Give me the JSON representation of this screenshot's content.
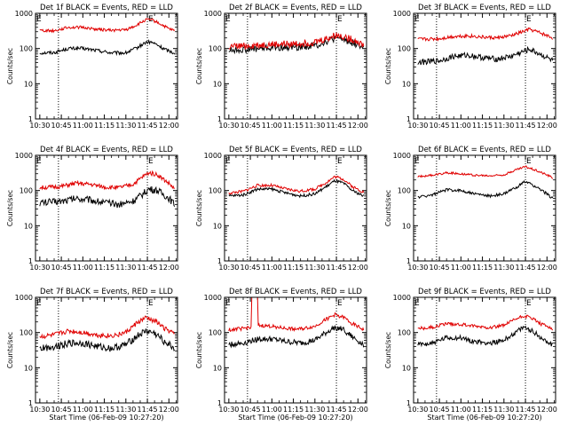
{
  "figure": {
    "background": "#ffffff",
    "colors": {
      "events": "#000000",
      "lld": "#e00000",
      "axis": "#000000"
    }
  },
  "chart_data": [
    {
      "type": "line",
      "title": "Det 1f BLACK = Events, RED = LLD",
      "xlabel": "",
      "ylabel": "Counts/sec",
      "yscale": "log",
      "ylim": [
        1,
        1000
      ],
      "x_ticks": [
        "10:30",
        "10:45",
        "11:00",
        "11:15",
        "11:30",
        "11:45",
        "12:00"
      ],
      "y_ticks": [
        "1",
        "10",
        "100",
        "1000"
      ],
      "markers": [
        {
          "time": "10:43",
          "label": ""
        },
        {
          "time": "11:45",
          "label": "E"
        }
      ],
      "corner_label": "E",
      "series": [
        {
          "name": "Events",
          "color": "#000000",
          "x": [
            "10:30",
            "10:40",
            "10:50",
            "11:00",
            "11:10",
            "11:20",
            "11:30",
            "11:37",
            "11:44",
            "11:48",
            "11:52",
            "11:56",
            "12:00",
            "12:04"
          ],
          "y": [
            75,
            77,
            100,
            100,
            88,
            75,
            75,
            100,
            150,
            150,
            125,
            100,
            85,
            75
          ],
          "noise": 0.05
        },
        {
          "name": "LLD",
          "color": "#e00000",
          "x": [
            "10:30",
            "10:40",
            "10:50",
            "11:00",
            "11:10",
            "11:20",
            "11:30",
            "11:37",
            "11:44",
            "11:48",
            "11:52",
            "11:56",
            "12:00",
            "12:04"
          ],
          "y": [
            330,
            320,
            400,
            400,
            350,
            330,
            340,
            450,
            650,
            650,
            550,
            450,
            360,
            320
          ],
          "noise": 0.04
        }
      ]
    },
    {
      "type": "line",
      "title": "Det 2f BLACK = Events, RED = LLD",
      "xlabel": "",
      "ylabel": "Counts/sec",
      "yscale": "log",
      "ylim": [
        1,
        1000
      ],
      "x_ticks": [
        "10:30",
        "10:45",
        "11:00",
        "11:15",
        "11:30",
        "11:45",
        "12:00"
      ],
      "y_ticks": [
        "1",
        "10",
        "100",
        "1000"
      ],
      "markers": [
        {
          "time": "10:43",
          "label": ""
        },
        {
          "time": "11:45",
          "label": "E"
        }
      ],
      "corner_label": "E",
      "series": [
        {
          "name": "Events",
          "color": "#000000",
          "x": [
            "10:30",
            "10:45",
            "11:00",
            "11:15",
            "11:30",
            "11:40",
            "11:45",
            "11:50",
            "12:00",
            "12:04"
          ],
          "y": [
            90,
            95,
            105,
            110,
            120,
            170,
            200,
            180,
            130,
            100
          ],
          "noise": 0.1
        },
        {
          "name": "LLD",
          "color": "#e00000",
          "x": [
            "10:30",
            "10:45",
            "11:00",
            "11:15",
            "11:30",
            "11:40",
            "11:45",
            "11:50",
            "12:00",
            "12:04"
          ],
          "y": [
            110,
            120,
            130,
            135,
            150,
            200,
            240,
            220,
            160,
            120
          ],
          "noise": 0.1
        }
      ]
    },
    {
      "type": "line",
      "title": "Det 3f BLACK = Events, RED = LLD",
      "xlabel": "",
      "ylabel": "Counts/sec",
      "yscale": "log",
      "ylim": [
        1,
        1000
      ],
      "x_ticks": [
        "10:30",
        "10:45",
        "11:00",
        "11:15",
        "11:30",
        "11:45",
        "12:00"
      ],
      "y_ticks": [
        "1",
        "10",
        "100",
        "1000"
      ],
      "markers": [
        {
          "time": "10:43",
          "label": ""
        },
        {
          "time": "11:45",
          "label": "E"
        }
      ],
      "corner_label": "E",
      "series": [
        {
          "name": "Events",
          "color": "#000000",
          "x": [
            "10:30",
            "10:45",
            "10:55",
            "11:05",
            "11:15",
            "11:25",
            "11:35",
            "11:43",
            "11:48",
            "11:55",
            "12:04"
          ],
          "y": [
            40,
            45,
            60,
            65,
            55,
            50,
            60,
            80,
            95,
            70,
            45
          ],
          "noise": 0.08
        },
        {
          "name": "LLD",
          "color": "#e00000",
          "x": [
            "10:30",
            "10:45",
            "10:55",
            "11:05",
            "11:15",
            "11:25",
            "11:35",
            "11:43",
            "11:48",
            "11:55",
            "12:04"
          ],
          "y": [
            180,
            190,
            220,
            230,
            210,
            200,
            230,
            300,
            350,
            280,
            200
          ],
          "noise": 0.05
        }
      ]
    },
    {
      "type": "line",
      "title": "Det 4f BLACK = Events, RED = LLD",
      "xlabel": "",
      "ylabel": "Counts/sec",
      "yscale": "log",
      "ylim": [
        1,
        1000
      ],
      "x_ticks": [
        "10:30",
        "10:45",
        "11:00",
        "11:15",
        "11:30",
        "11:45",
        "12:00"
      ],
      "y_ticks": [
        "1",
        "10",
        "100",
        "1000"
      ],
      "markers": [
        {
          "time": "10:43",
          "label": ""
        },
        {
          "time": "11:45",
          "label": "E"
        }
      ],
      "corner_label": "E",
      "series": [
        {
          "name": "Events",
          "color": "#000000",
          "x": [
            "10:30",
            "10:45",
            "10:55",
            "11:05",
            "11:15",
            "11:25",
            "11:35",
            "11:42",
            "11:46",
            "11:52",
            "12:00",
            "12:04"
          ],
          "y": [
            45,
            50,
            60,
            55,
            45,
            40,
            50,
            80,
            110,
            100,
            60,
            40
          ],
          "noise": 0.1
        },
        {
          "name": "LLD",
          "color": "#e00000",
          "x": [
            "10:30",
            "10:45",
            "10:55",
            "11:05",
            "11:15",
            "11:25",
            "11:35",
            "11:42",
            "11:46",
            "11:52",
            "12:00",
            "12:04"
          ],
          "y": [
            120,
            130,
            160,
            150,
            125,
            120,
            150,
            250,
            320,
            280,
            160,
            110
          ],
          "noise": 0.06
        }
      ]
    },
    {
      "type": "line",
      "title": "Det 5f BLACK = Events, RED = LLD",
      "xlabel": "",
      "ylabel": "Counts/sec",
      "yscale": "log",
      "ylim": [
        1,
        1000
      ],
      "x_ticks": [
        "10:30",
        "10:45",
        "11:00",
        "11:15",
        "11:30",
        "11:45",
        "12:00"
      ],
      "y_ticks": [
        "1",
        "10",
        "100",
        "1000"
      ],
      "markers": [
        {
          "time": "10:43",
          "label": ""
        },
        {
          "time": "11:45",
          "label": "E"
        }
      ],
      "corner_label": "E",
      "series": [
        {
          "name": "Events",
          "color": "#000000",
          "x": [
            "10:30",
            "10:40",
            "10:50",
            "11:00",
            "11:10",
            "11:20",
            "11:30",
            "11:38",
            "11:44",
            "11:50",
            "11:56",
            "12:04"
          ],
          "y": [
            70,
            75,
            110,
            110,
            85,
            70,
            80,
            130,
            190,
            160,
            100,
            70
          ],
          "noise": 0.04
        },
        {
          "name": "LLD",
          "color": "#e00000",
          "x": [
            "10:30",
            "10:40",
            "10:50",
            "11:00",
            "11:10",
            "11:20",
            "11:30",
            "11:38",
            "11:44",
            "11:50",
            "11:56",
            "12:04"
          ],
          "y": [
            85,
            95,
            140,
            140,
            110,
            95,
            110,
            170,
            250,
            210,
            130,
            90
          ],
          "noise": 0.04
        }
      ]
    },
    {
      "type": "line",
      "title": "Det 6f BLACK = Events, RED = LLD",
      "xlabel": "",
      "ylabel": "Counts/sec",
      "yscale": "log",
      "ylim": [
        1,
        1000
      ],
      "x_ticks": [
        "10:30",
        "10:45",
        "11:00",
        "11:15",
        "11:30",
        "11:45",
        "12:00"
      ],
      "y_ticks": [
        "1",
        "10",
        "100",
        "1000"
      ],
      "markers": [
        {
          "time": "10:43",
          "label": ""
        },
        {
          "time": "11:45",
          "label": "E"
        }
      ],
      "corner_label": "E",
      "series": [
        {
          "name": "Events",
          "color": "#000000",
          "x": [
            "10:30",
            "10:40",
            "10:50",
            "11:00",
            "11:10",
            "11:20",
            "11:30",
            "11:38",
            "11:45",
            "11:52",
            "12:00",
            "12:04"
          ],
          "y": [
            65,
            75,
            105,
            100,
            80,
            70,
            80,
            120,
            180,
            130,
            80,
            60
          ],
          "noise": 0.04
        },
        {
          "name": "LLD",
          "color": "#e00000",
          "x": [
            "10:30",
            "10:40",
            "10:50",
            "11:00",
            "11:10",
            "11:20",
            "11:30",
            "11:38",
            "11:45",
            "11:52",
            "12:00",
            "12:04"
          ],
          "y": [
            250,
            270,
            320,
            300,
            270,
            260,
            280,
            380,
            480,
            380,
            280,
            230
          ],
          "noise": 0.03
        }
      ]
    },
    {
      "type": "line",
      "title": "Det 7f BLACK = Events, RED = LLD",
      "xlabel": "Start Time (06-Feb-09 10:27:20)",
      "ylabel": "Counts/sec",
      "yscale": "log",
      "ylim": [
        1,
        1000
      ],
      "x_ticks": [
        "10:30",
        "10:45",
        "11:00",
        "11:15",
        "11:30",
        "11:45",
        "12:00"
      ],
      "y_ticks": [
        "1",
        "10",
        "100",
        "1000"
      ],
      "markers": [
        {
          "time": "10:43",
          "label": ""
        },
        {
          "time": "11:45",
          "label": "E"
        }
      ],
      "corner_label": "E",
      "series": [
        {
          "name": "Events",
          "color": "#000000",
          "x": [
            "10:30",
            "10:40",
            "10:50",
            "11:00",
            "11:10",
            "11:20",
            "11:30",
            "11:38",
            "11:44",
            "11:50",
            "11:56",
            "12:04"
          ],
          "y": [
            35,
            40,
            50,
            50,
            40,
            35,
            45,
            80,
            110,
            95,
            60,
            35
          ],
          "noise": 0.1
        },
        {
          "name": "LLD",
          "color": "#e00000",
          "x": [
            "10:30",
            "10:40",
            "10:50",
            "11:00",
            "11:10",
            "11:20",
            "11:30",
            "11:38",
            "11:44",
            "11:50",
            "11:56",
            "12:04"
          ],
          "y": [
            75,
            85,
            110,
            100,
            85,
            80,
            100,
            190,
            260,
            220,
            140,
            90
          ],
          "noise": 0.07
        }
      ]
    },
    {
      "type": "line",
      "title": "Det 8f BLACK = Events, RED = LLD",
      "xlabel": "Start Time (06-Feb-09 10:27:20)",
      "ylabel": "Counts/sec",
      "yscale": "log",
      "ylim": [
        1,
        1000
      ],
      "x_ticks": [
        "10:30",
        "10:45",
        "11:00",
        "11:15",
        "11:30",
        "11:45",
        "12:00"
      ],
      "y_ticks": [
        "1",
        "10",
        "100",
        "1000"
      ],
      "markers": [
        {
          "time": "10:43",
          "label": ""
        },
        {
          "time": "11:45",
          "label": "E"
        }
      ],
      "corner_label": "E",
      "spike": {
        "series": "LLD",
        "from": "10:46",
        "to": "10:50",
        "value": 1000
      },
      "series": [
        {
          "name": "Events",
          "color": "#000000",
          "x": [
            "10:30",
            "10:40",
            "10:50",
            "11:00",
            "11:10",
            "11:20",
            "11:30",
            "11:38",
            "11:44",
            "11:50",
            "11:56",
            "12:04"
          ],
          "y": [
            45,
            50,
            65,
            65,
            55,
            50,
            60,
            100,
            140,
            120,
            75,
            45
          ],
          "noise": 0.08
        },
        {
          "name": "LLD",
          "color": "#e00000",
          "x": [
            "10:30",
            "10:40",
            "10:50",
            "11:00",
            "11:10",
            "11:20",
            "11:30",
            "11:38",
            "11:44",
            "11:50",
            "11:56",
            "12:04"
          ],
          "y": [
            120,
            130,
            160,
            150,
            130,
            125,
            150,
            240,
            320,
            270,
            180,
            120
          ],
          "noise": 0.05
        }
      ]
    },
    {
      "type": "line",
      "title": "Det 9f BLACK = Events, RED = LLD",
      "xlabel": "Start Time (06-Feb-09 10:27:20)",
      "ylabel": "Counts/sec",
      "yscale": "log",
      "ylim": [
        1,
        1000
      ],
      "x_ticks": [
        "10:30",
        "10:45",
        "11:00",
        "11:15",
        "11:30",
        "11:45",
        "12:00"
      ],
      "y_ticks": [
        "1",
        "10",
        "100",
        "1000"
      ],
      "markers": [
        {
          "time": "10:43",
          "label": ""
        },
        {
          "time": "11:45",
          "label": "E"
        }
      ],
      "corner_label": "E",
      "series": [
        {
          "name": "Events",
          "color": "#000000",
          "x": [
            "10:30",
            "10:40",
            "10:50",
            "11:00",
            "11:10",
            "11:20",
            "11:30",
            "11:38",
            "11:44",
            "11:50",
            "11:56",
            "12:04"
          ],
          "y": [
            45,
            50,
            70,
            70,
            55,
            50,
            60,
            100,
            140,
            110,
            70,
            45
          ],
          "noise": 0.07
        },
        {
          "name": "LLD",
          "color": "#e00000",
          "x": [
            "10:30",
            "10:40",
            "10:50",
            "11:00",
            "11:10",
            "11:20",
            "11:30",
            "11:38",
            "11:44",
            "11:50",
            "11:56",
            "12:04"
          ],
          "y": [
            130,
            140,
            180,
            170,
            150,
            140,
            160,
            240,
            300,
            250,
            170,
            130
          ],
          "noise": 0.05
        }
      ]
    }
  ]
}
